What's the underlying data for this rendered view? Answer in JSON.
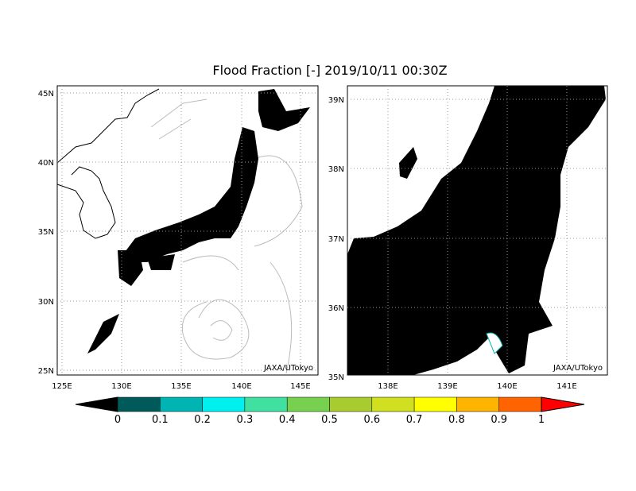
{
  "title": "Flood Fraction [-] 2019/10/11 00:30Z",
  "panels": [
    {
      "credit": "JAXA/UTokyo",
      "lon_labels": [
        "125E",
        "130E",
        "135E",
        "140E",
        "145E"
      ],
      "lat_labels": [
        "45N",
        "40N",
        "35N",
        "30N",
        "25N"
      ]
    },
    {
      "credit": "JAXA/UTokyo",
      "lon_labels": [
        "138E",
        "139E",
        "140E",
        "141E"
      ],
      "lat_labels": [
        "39N",
        "38N",
        "37N",
        "36N",
        "35N"
      ]
    }
  ],
  "colorbar": {
    "ticks": [
      0,
      0.1,
      0.2,
      0.3,
      0.4,
      0.5,
      0.6,
      0.7,
      0.8,
      0.9,
      1
    ],
    "under_color": "#000000",
    "over_color": "#ff0000",
    "colors": [
      "#005a5a",
      "#00b4b4",
      "#00f0f0",
      "#40e0a0",
      "#78d050",
      "#a8cc30",
      "#d0e020",
      "#ffff00",
      "#ffb400",
      "#ff6400"
    ]
  }
}
